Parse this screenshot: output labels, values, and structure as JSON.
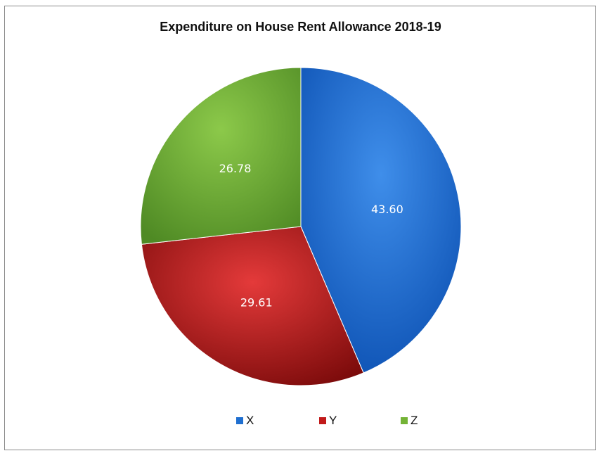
{
  "chart_data": {
    "type": "pie",
    "title": "Expenditure on House Rent Allowance 2018-19",
    "categories": [
      "X",
      "Y",
      "Z"
    ],
    "values": [
      43.6,
      29.61,
      26.78
    ],
    "labels": [
      "43.60",
      "29.61",
      "26.78"
    ],
    "colors": [
      "#1f6fd0",
      "#c11a1a",
      "#74b336"
    ],
    "legend_position": "bottom"
  }
}
